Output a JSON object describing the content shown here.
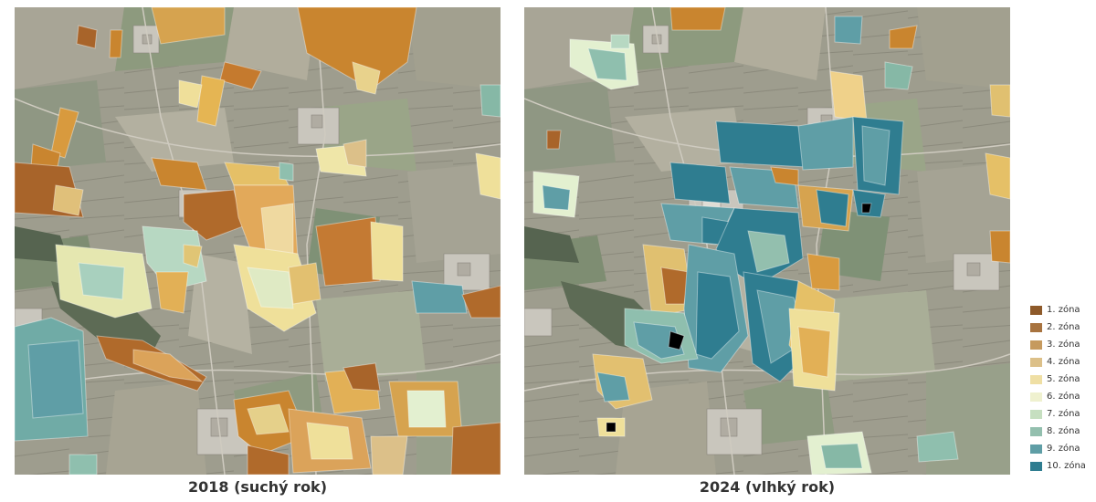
{
  "maps": [
    {
      "caption": "2018 (suchý rok)"
    },
    {
      "caption": "2024 (vlhký rok)"
    }
  ],
  "legend": [
    {
      "label": "1. zóna",
      "color": "#8e5a2a"
    },
    {
      "label": "2. zóna",
      "color": "#a8733f"
    },
    {
      "label": "3. zóna",
      "color": "#c69a5e"
    },
    {
      "label": "4. zóna",
      "color": "#dcc089"
    },
    {
      "label": "5. zóna",
      "color": "#efdfa4"
    },
    {
      "label": "6. zóna",
      "color": "#eff1cf"
    },
    {
      "label": "7. zóna",
      "color": "#c6dfc0"
    },
    {
      "label": "8. zóna",
      "color": "#93bfae"
    },
    {
      "label": "9. zóna",
      "color": "#5f9ea6"
    },
    {
      "label": "10. zóna",
      "color": "#2f7d90"
    }
  ]
}
